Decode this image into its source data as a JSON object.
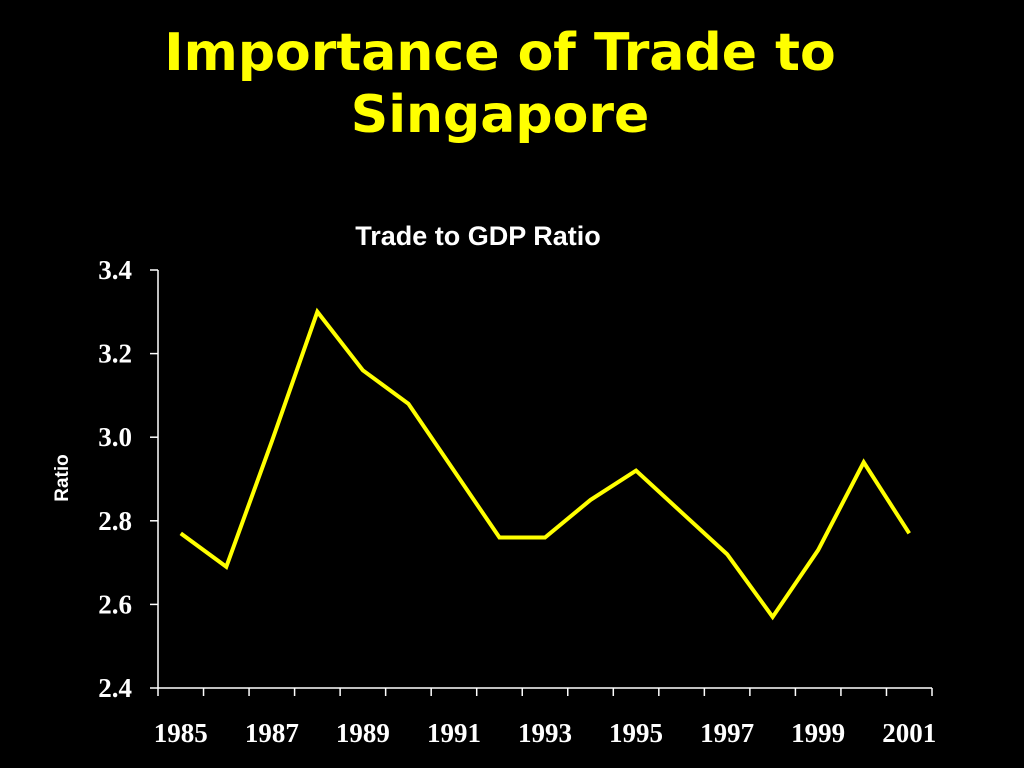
{
  "slide": {
    "title_line1": "Importance of Trade to",
    "title_line2": "Singapore"
  },
  "chart_data": {
    "type": "line",
    "title": "Trade to GDP Ratio",
    "xlabel": "",
    "ylabel": "Ratio",
    "x": [
      1985,
      1986,
      1987,
      1988,
      1989,
      1990,
      1991,
      1992,
      1993,
      1994,
      1995,
      1996,
      1997,
      1998,
      1999,
      2000,
      2001
    ],
    "x_tick_labels": [
      "1985",
      "1987",
      "1989",
      "1991",
      "1993",
      "1995",
      "1997",
      "1999",
      "2001"
    ],
    "series": [
      {
        "values": [
          2.77,
          2.69,
          2.99,
          3.3,
          3.16,
          3.08,
          2.92,
          2.76,
          2.76,
          2.85,
          2.92,
          2.82,
          2.72,
          2.57,
          2.73,
          2.94,
          2.77
        ]
      }
    ],
    "ylim": [
      2.4,
      3.4
    ],
    "y_ticks": [
      "2.4",
      "2.6",
      "2.8",
      "3.0",
      "3.2",
      "3.4"
    ],
    "grid": false,
    "legend": "none",
    "colors": {
      "background": "#000000",
      "title": "#ffff00",
      "line": "#ffff00",
      "axis": "#ffffff",
      "text": "#ffffff"
    }
  }
}
